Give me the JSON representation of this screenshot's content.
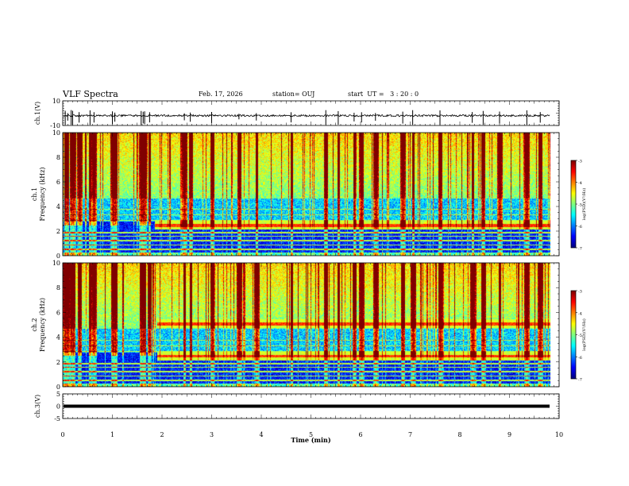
{
  "header": {
    "title": "VLF Spectra",
    "date": "Feb. 17, 2026",
    "station": "station= OUJ",
    "start": "start  UT =   3 : 20 : 0"
  },
  "chart_data": [
    {
      "type": "line",
      "panel": "ch1-waveform",
      "ylabel": "ch.1(V)",
      "ylim": [
        -10,
        10
      ],
      "yticks": [
        "10",
        "-10"
      ],
      "xlim": [
        0,
        10
      ],
      "baseline": -2,
      "spikes_min": [
        0.05,
        0.1,
        0.17,
        0.2,
        0.33,
        0.55,
        0.63,
        1.0,
        1.05,
        1.58,
        1.62,
        1.65,
        1.75,
        2.45,
        2.57,
        3.0,
        3.55,
        3.9,
        4.6,
        5.3,
        5.55,
        5.87,
        6.02,
        6.3,
        6.85,
        7.05,
        7.6,
        8.25,
        8.47,
        8.8,
        9.35,
        9.62
      ]
    },
    {
      "type": "heatmap",
      "panel": "ch1-spectrogram",
      "ylabel_top": "ch.1",
      "ylabel": "Frequency  (kHz)",
      "ylim": [
        0,
        10
      ],
      "yticks": [
        "0",
        "2",
        "4",
        "6",
        "8",
        "10"
      ],
      "xlim": [
        0,
        10
      ],
      "data_end_min": 9.82,
      "noise_floor_khz": 4.7,
      "colorbar_label": "log(PSD)(V²/Hz)",
      "colorbar_range": [
        -7,
        -3
      ],
      "colorbar_ticks": [
        "-3",
        "-4",
        "-5",
        "-6",
        "-7"
      ],
      "hiss_bands": [
        {
          "center_khz": 2.5,
          "from_min": 1.85,
          "to_min": 9.82
        }
      ],
      "spheric_times_min": [
        0.05,
        0.1,
        0.17,
        0.2,
        0.33,
        0.55,
        0.63,
        1.0,
        1.05,
        1.58,
        1.62,
        1.65,
        1.75,
        2.45,
        2.57,
        3.0,
        3.55,
        3.9,
        4.6,
        5.3,
        5.55,
        5.87,
        6.02,
        6.3,
        6.85,
        7.05,
        7.6,
        8.25,
        8.47,
        8.8,
        9.35,
        9.62
      ]
    },
    {
      "type": "heatmap",
      "panel": "ch2-spectrogram",
      "ylabel_top": "ch.2",
      "ylabel": "Frequency  (kHz)",
      "ylim": [
        0,
        10
      ],
      "yticks": [
        "0",
        "2",
        "4",
        "6",
        "8",
        "10"
      ],
      "xlim": [
        0,
        10
      ],
      "data_end_min": 9.82,
      "noise_floor_khz": 4.7,
      "colorbar_label": "log(PSD)(V²/Hz)",
      "colorbar_range": [
        -7,
        -3
      ],
      "colorbar_ticks": [
        "-3",
        "-4",
        "-5",
        "-6",
        "-7"
      ],
      "hiss_bands": [
        {
          "center_khz": 5.1,
          "from_min": 1.9,
          "to_min": 9.82
        },
        {
          "center_khz": 2.5,
          "from_min": 1.9,
          "to_min": 9.82
        }
      ],
      "spheric_times_min": [
        0.05,
        0.1,
        0.17,
        0.2,
        0.33,
        0.55,
        0.63,
        1.0,
        1.05,
        1.58,
        1.62,
        1.65,
        1.75,
        2.45,
        2.57,
        3.0,
        3.55,
        3.9,
        4.6,
        5.3,
        5.55,
        5.87,
        6.02,
        6.3,
        6.85,
        7.05,
        7.6,
        8.25,
        8.47,
        8.8,
        9.35,
        9.62
      ]
    },
    {
      "type": "line",
      "panel": "ch3-waveform",
      "ylabel": "ch.3(V)",
      "ylim": [
        -5,
        5
      ],
      "yticks": [
        "5",
        "0",
        "-5"
      ],
      "xlim": [
        0,
        10
      ],
      "baseline": 0,
      "spikes_min": []
    }
  ],
  "xaxis": {
    "label": "Time  (min)",
    "ticks": [
      "0",
      "1",
      "2",
      "3",
      "4",
      "5",
      "6",
      "7",
      "8",
      "9",
      "10"
    ]
  }
}
